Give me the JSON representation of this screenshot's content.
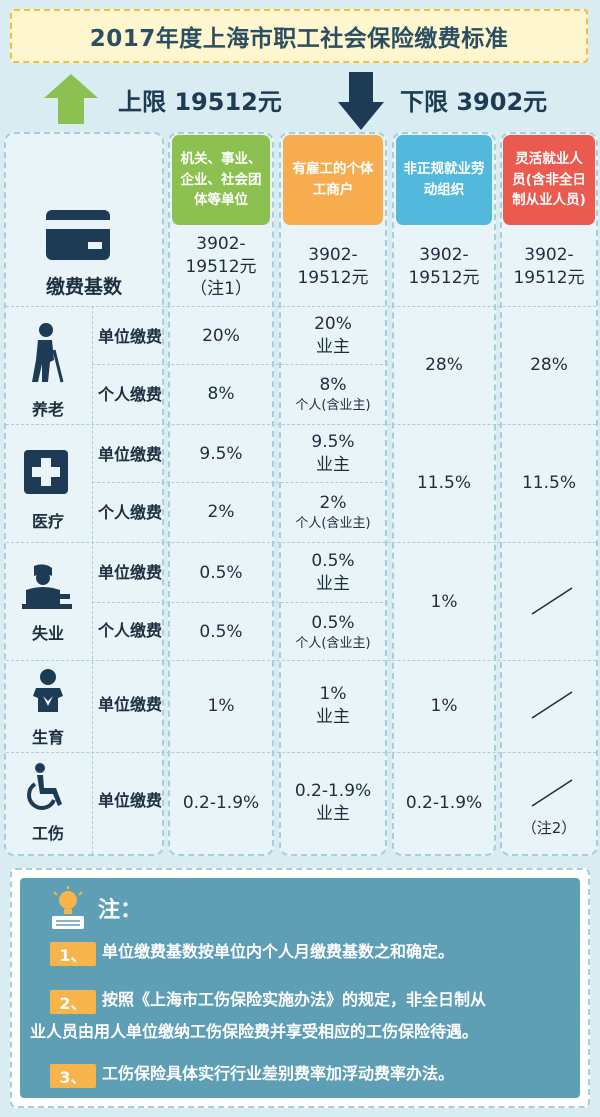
{
  "title": "2017年度上海市职工社会保险缴费标准",
  "limits": {
    "upper": "上限 19512元",
    "lower": "下限 3902元"
  },
  "headers": {
    "col1": "机关、事业、企业、社会团体等单位",
    "col2": "有雇工的个体工商户",
    "col3": "非正规就业劳动组织",
    "col4": "灵活就业人员(含非全日制从业人员)"
  },
  "base": {
    "label": "缴费基数",
    "col1": "3902-19512元（注1）",
    "col2": "3902-19512元",
    "col3": "3902-19512元",
    "col4": "3902-19512元"
  },
  "sub_labels": {
    "unit": "单位缴费",
    "personal": "个人缴费"
  },
  "categories": {
    "pension": "养老",
    "medical": "医疗",
    "unemployment": "失业",
    "maternity": "生育",
    "injury": "工伤"
  },
  "rates": {
    "pension_unit_c1": "20%",
    "pension_unit_c2": "20%",
    "pension_unit_c2_note": "业主",
    "pension_personal_c1": "8%",
    "pension_personal_c2": "8%",
    "pension_personal_c2_note": "个人(含业主)",
    "pension_c3": "28%",
    "pension_c4": "28%",
    "medical_unit_c1": "9.5%",
    "medical_unit_c2": "9.5%",
    "medical_unit_c2_note": "业主",
    "medical_personal_c1": "2%",
    "medical_personal_c2": "2%",
    "medical_personal_c2_note": "个人(含业主)",
    "medical_c3": "11.5%",
    "medical_c4": "11.5%",
    "unemp_unit_c1": "0.5%",
    "unemp_unit_c2": "0.5%",
    "unemp_unit_c2_note": "业主",
    "unemp_personal_c1": "0.5%",
    "unemp_personal_c2": "0.5%",
    "unemp_personal_c2_note": "个人(含业主)",
    "unemp_c3": "1%",
    "maternity_c1": "1%",
    "maternity_c2": "1%",
    "maternity_c2_note": "业主",
    "maternity_c3": "1%",
    "injury_c1": "0.2-1.9%",
    "injury_c2": "0.2-1.9%",
    "injury_c2_note": "业主",
    "injury_c3": "0.2-1.9%",
    "injury_c4_note": "（注2）"
  },
  "notes": {
    "title": "注：",
    "items": [
      {
        "num": "1、",
        "text": "单位缴费基数按单位内个人月缴费基数之和确定。"
      },
      {
        "num": "2、",
        "text_line1": "按照《上海市工伤保险实施办法》的规定，非全日制从",
        "text_line2": "业人员由用人单位缴纳工伤保险费并享受相应的工伤保险待遇。"
      },
      {
        "num": "3、",
        "text": "工伤保险具体实行行业差别费率加浮动费率办法。"
      }
    ]
  },
  "colors": {
    "green": "#8cc152",
    "orange": "#f7ad4f",
    "blue": "#52b9dd",
    "red": "#ea5a4e",
    "navy": "#1e3b55"
  }
}
